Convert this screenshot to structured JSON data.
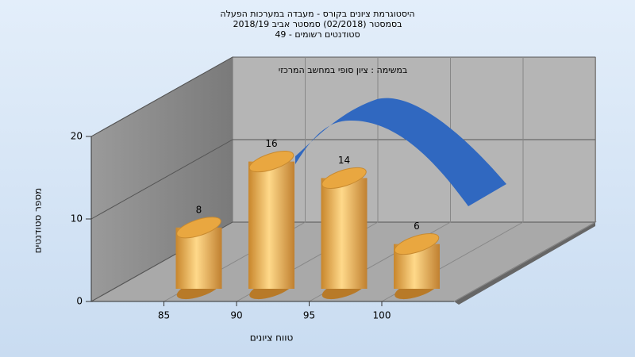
{
  "chart_data": {
    "type": "bar",
    "title": [
      "היסטוגרמת ציונים בקורס - מעבדה במערכות הפעלה",
      "בסמסטר  (02/2018)  סמסטר אביב 2018/19",
      "סטודנטים רשומים - 49"
    ],
    "subtitle": "במשימה : ציון סופי במחשב המרכזי",
    "x_label": "טווח ציונים",
    "y_label": "מספר סטודנטים",
    "categories": [
      "85",
      "90",
      "95",
      "100"
    ],
    "values": [
      8,
      16,
      14,
      6
    ],
    "color": "#e8a844",
    "ylim": [
      0,
      20
    ],
    "yticks": [
      0,
      10,
      20
    ],
    "grid": true
  }
}
